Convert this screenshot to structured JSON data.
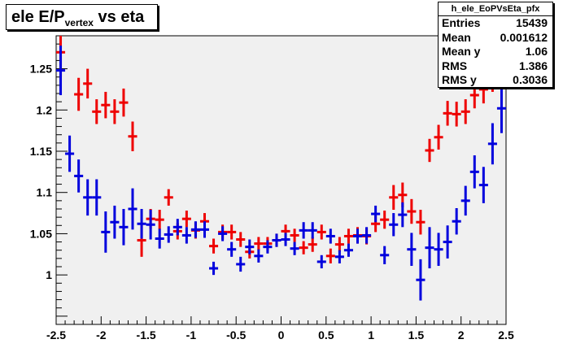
{
  "title": {
    "main": "ele E/P",
    "subscript": "vertex",
    "rest": " vs eta"
  },
  "stats": {
    "name": "h_ele_EoPVsEta_pfx",
    "rows": [
      {
        "label": "Entries",
        "value": "15439"
      },
      {
        "label": "Mean",
        "value": "0.001612"
      },
      {
        "label": "Mean y",
        "value": "1.06"
      },
      {
        "label": "RMS",
        "value": "1.386"
      },
      {
        "label": "RMS y",
        "value": "0.3036"
      }
    ]
  },
  "colors": {
    "frame_bg": "#f0f0f0",
    "red": "#ee0000",
    "blue": "#0000dd"
  },
  "chart_data": {
    "type": "scatter",
    "title": "ele E/P_vertex vs eta",
    "xlim": [
      -2.5,
      2.5
    ],
    "ylim": [
      0.94,
      1.29
    ],
    "x_ticks": [
      "-2.5",
      "-2",
      "-1.5",
      "-1",
      "-0.5",
      "0",
      "0.5",
      "1",
      "1.5",
      "2",
      "2.5"
    ],
    "y_ticks": [
      "1",
      "1.05",
      "1.1",
      "1.15",
      "1.2",
      "1.25"
    ],
    "grid": false,
    "x_bin_half_width": 0.05,
    "series": [
      {
        "color": "red",
        "points": [
          {
            "x": -2.45,
            "y": 1.27,
            "err": 0.03
          },
          {
            "x": -2.25,
            "y": 1.219,
            "err": 0.02
          },
          {
            "x": -2.15,
            "y": 1.232,
            "err": 0.018
          },
          {
            "x": -2.05,
            "y": 1.198,
            "err": 0.015
          },
          {
            "x": -1.95,
            "y": 1.206,
            "err": 0.016
          },
          {
            "x": -1.85,
            "y": 1.198,
            "err": 0.015
          },
          {
            "x": -1.75,
            "y": 1.209,
            "err": 0.017
          },
          {
            "x": -1.65,
            "y": 1.168,
            "err": 0.018
          },
          {
            "x": -1.55,
            "y": 1.042,
            "err": 0.02
          },
          {
            "x": -1.45,
            "y": 1.068,
            "err": 0.012
          },
          {
            "x": -1.35,
            "y": 1.067,
            "err": 0.012
          },
          {
            "x": -1.25,
            "y": 1.094,
            "err": 0.01
          },
          {
            "x": -1.15,
            "y": 1.053,
            "err": 0.01
          },
          {
            "x": -1.05,
            "y": 1.068,
            "err": 0.01
          },
          {
            "x": -0.95,
            "y": 1.054,
            "err": 0.01
          },
          {
            "x": -0.85,
            "y": 1.065,
            "err": 0.01
          },
          {
            "x": -0.75,
            "y": 1.035,
            "err": 0.009
          },
          {
            "x": -0.65,
            "y": 1.052,
            "err": 0.009
          },
          {
            "x": -0.55,
            "y": 1.052,
            "err": 0.009
          },
          {
            "x": -0.45,
            "y": 1.043,
            "err": 0.009
          },
          {
            "x": -0.35,
            "y": 1.028,
            "err": 0.008
          },
          {
            "x": -0.25,
            "y": 1.038,
            "err": 0.008
          },
          {
            "x": -0.15,
            "y": 1.038,
            "err": 0.008
          },
          {
            "x": -0.05,
            "y": 1.042,
            "err": 0.008
          },
          {
            "x": 0.05,
            "y": 1.053,
            "err": 0.008
          },
          {
            "x": 0.15,
            "y": 1.048,
            "err": 0.008
          },
          {
            "x": 0.25,
            "y": 1.033,
            "err": 0.008
          },
          {
            "x": 0.35,
            "y": 1.037,
            "err": 0.009
          },
          {
            "x": 0.45,
            "y": 1.052,
            "err": 0.009
          },
          {
            "x": 0.55,
            "y": 1.023,
            "err": 0.009
          },
          {
            "x": 0.65,
            "y": 1.037,
            "err": 0.009
          },
          {
            "x": 0.75,
            "y": 1.047,
            "err": 0.009
          },
          {
            "x": 0.85,
            "y": 1.048,
            "err": 0.01
          },
          {
            "x": 0.95,
            "y": 1.047,
            "err": 0.01
          },
          {
            "x": 1.05,
            "y": 1.062,
            "err": 0.01
          },
          {
            "x": 1.15,
            "y": 1.067,
            "err": 0.011
          },
          {
            "x": 1.25,
            "y": 1.094,
            "err": 0.015
          },
          {
            "x": 1.35,
            "y": 1.097,
            "err": 0.015
          },
          {
            "x": 1.45,
            "y": 1.077,
            "err": 0.015
          },
          {
            "x": 1.55,
            "y": 1.064,
            "err": 0.015
          },
          {
            "x": 1.65,
            "y": 1.151,
            "err": 0.014
          },
          {
            "x": 1.75,
            "y": 1.167,
            "err": 0.015
          },
          {
            "x": 1.85,
            "y": 1.196,
            "err": 0.015
          },
          {
            "x": 1.95,
            "y": 1.195,
            "err": 0.015
          },
          {
            "x": 2.05,
            "y": 1.198,
            "err": 0.015
          },
          {
            "x": 2.15,
            "y": 1.218,
            "err": 0.016
          },
          {
            "x": 2.25,
            "y": 1.225,
            "err": 0.017
          },
          {
            "x": 2.35,
            "y": 1.24,
            "err": 0.018
          },
          {
            "x": 2.45,
            "y": 1.265,
            "err": 0.025
          }
        ]
      },
      {
        "color": "blue",
        "points": [
          {
            "x": -2.45,
            "y": 1.248,
            "err": 0.03
          },
          {
            "x": -2.35,
            "y": 1.147,
            "err": 0.022
          },
          {
            "x": -2.25,
            "y": 1.12,
            "err": 0.02
          },
          {
            "x": -2.15,
            "y": 1.094,
            "err": 0.022
          },
          {
            "x": -2.05,
            "y": 1.094,
            "err": 0.022
          },
          {
            "x": -1.95,
            "y": 1.052,
            "err": 0.025
          },
          {
            "x": -1.85,
            "y": 1.064,
            "err": 0.02
          },
          {
            "x": -1.75,
            "y": 1.058,
            "err": 0.022
          },
          {
            "x": -1.65,
            "y": 1.08,
            "err": 0.025
          },
          {
            "x": -1.55,
            "y": 1.062,
            "err": 0.018
          },
          {
            "x": -1.45,
            "y": 1.061,
            "err": 0.018
          },
          {
            "x": -1.35,
            "y": 1.044,
            "err": 0.012
          },
          {
            "x": -1.25,
            "y": 1.049,
            "err": 0.01
          },
          {
            "x": -1.15,
            "y": 1.058,
            "err": 0.01
          },
          {
            "x": -1.05,
            "y": 1.048,
            "err": 0.01
          },
          {
            "x": -0.95,
            "y": 1.055,
            "err": 0.01
          },
          {
            "x": -0.85,
            "y": 1.055,
            "err": 0.01
          },
          {
            "x": -0.75,
            "y": 1.008,
            "err": 0.008
          },
          {
            "x": -0.65,
            "y": 1.05,
            "err": 0.009
          },
          {
            "x": -0.55,
            "y": 1.031,
            "err": 0.009
          },
          {
            "x": -0.45,
            "y": 1.013,
            "err": 0.009
          },
          {
            "x": -0.35,
            "y": 1.034,
            "err": 0.009
          },
          {
            "x": -0.25,
            "y": 1.023,
            "err": 0.008
          },
          {
            "x": -0.15,
            "y": 1.034,
            "err": 0.008
          },
          {
            "x": -0.05,
            "y": 1.042,
            "err": 0.008
          },
          {
            "x": 0.05,
            "y": 1.043,
            "err": 0.008
          },
          {
            "x": 0.15,
            "y": 1.032,
            "err": 0.008
          },
          {
            "x": 0.25,
            "y": 1.054,
            "err": 0.01
          },
          {
            "x": 0.35,
            "y": 1.054,
            "err": 0.01
          },
          {
            "x": 0.45,
            "y": 1.016,
            "err": 0.008
          },
          {
            "x": 0.55,
            "y": 1.047,
            "err": 0.009
          },
          {
            "x": 0.65,
            "y": 1.022,
            "err": 0.008
          },
          {
            "x": 0.75,
            "y": 1.03,
            "err": 0.008
          },
          {
            "x": 0.85,
            "y": 1.047,
            "err": 0.009
          },
          {
            "x": 0.95,
            "y": 1.048,
            "err": 0.01
          },
          {
            "x": 1.05,
            "y": 1.074,
            "err": 0.01
          },
          {
            "x": 1.15,
            "y": 1.024,
            "err": 0.011
          },
          {
            "x": 1.25,
            "y": 1.061,
            "err": 0.014
          },
          {
            "x": 1.35,
            "y": 1.073,
            "err": 0.015
          },
          {
            "x": 1.45,
            "y": 1.031,
            "err": 0.02
          },
          {
            "x": 1.55,
            "y": 0.994,
            "err": 0.025
          },
          {
            "x": 1.65,
            "y": 1.033,
            "err": 0.025
          },
          {
            "x": 1.75,
            "y": 1.031,
            "err": 0.02
          },
          {
            "x": 1.85,
            "y": 1.04,
            "err": 0.02
          },
          {
            "x": 1.95,
            "y": 1.065,
            "err": 0.016
          },
          {
            "x": 2.05,
            "y": 1.09,
            "err": 0.018
          },
          {
            "x": 2.15,
            "y": 1.125,
            "err": 0.02
          },
          {
            "x": 2.25,
            "y": 1.109,
            "err": 0.022
          },
          {
            "x": 2.35,
            "y": 1.159,
            "err": 0.025
          },
          {
            "x": 2.45,
            "y": 1.202,
            "err": 0.03
          }
        ]
      }
    ]
  }
}
